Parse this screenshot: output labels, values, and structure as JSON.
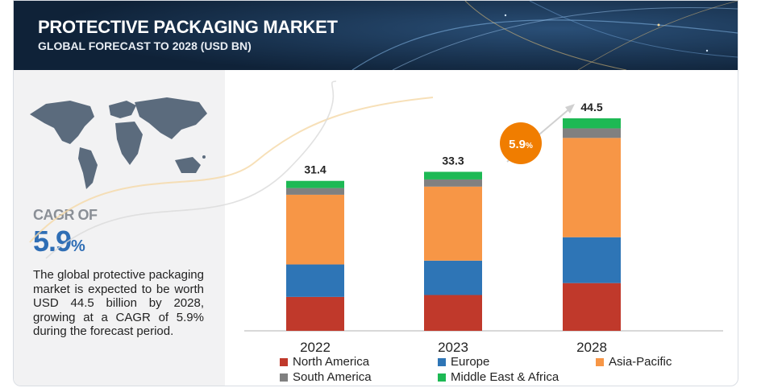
{
  "header": {
    "title": "PROTECTIVE PACKAGING MARKET",
    "subtitle": "GLOBAL FORECAST TO 2028 (USD BN)"
  },
  "summary": {
    "cagr_label": "CAGR OF",
    "cagr_value": "5.9",
    "cagr_unit": "%",
    "description": "The global protective packaging market is expected to be worth USD 44.5 billion by 2028, growing at a CAGR of 5.9% during the forecast period."
  },
  "growth_bubble": {
    "value": "5.9",
    "unit": "%"
  },
  "chart_data": {
    "type": "bar",
    "stacked": true,
    "categories": [
      "2022",
      "2023",
      "2028"
    ],
    "totals": [
      "31.4",
      "33.3",
      "44.5"
    ],
    "series": [
      {
        "name": "North America",
        "color": "#c0392b",
        "values": [
          7.1,
          7.5,
          10.0
        ]
      },
      {
        "name": "Europe",
        "color": "#2e75b6",
        "values": [
          6.8,
          7.2,
          9.6
        ]
      },
      {
        "name": "Asia-Pacific",
        "color": "#f79646",
        "values": [
          14.6,
          15.5,
          20.8
        ]
      },
      {
        "name": "South America",
        "color": "#808080",
        "values": [
          1.4,
          1.5,
          2.0
        ]
      },
      {
        "name": "Middle East & Africa",
        "color": "#1db954",
        "values": [
          1.5,
          1.6,
          2.1
        ]
      }
    ],
    "legend_position": "bottom",
    "grid": false
  },
  "colors": {
    "header_bg": "#132a45",
    "accent_blue": "#2f6eb5",
    "bubble_orange": "#f07d00"
  }
}
